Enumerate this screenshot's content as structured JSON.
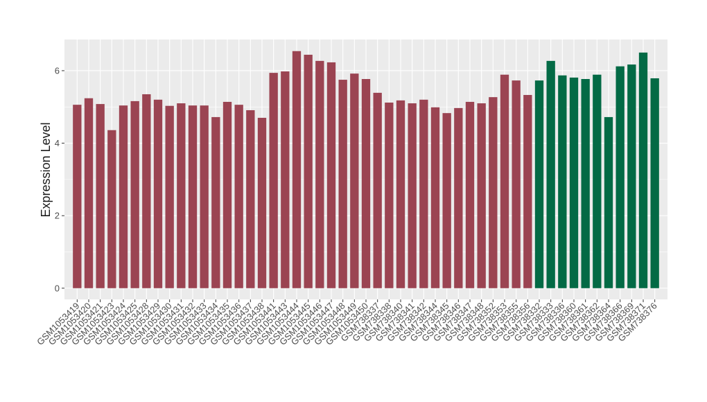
{
  "chart_data": {
    "type": "bar",
    "y_label": "Expression Level",
    "categories": [
      "GSM1053419",
      "GSM1053420",
      "GSM1053421",
      "GSM1053423",
      "GSM1053424",
      "GSM1053425",
      "GSM1053428",
      "GSM1053429",
      "GSM1053430",
      "GSM1053431",
      "GSM1053432",
      "GSM1053433",
      "GSM1053434",
      "GSM1053435",
      "GSM1053436",
      "GSM1053437",
      "GSM1053438",
      "GSM1053441",
      "GSM1053443",
      "GSM1053444",
      "GSM1053445",
      "GSM1053446",
      "GSM1053447",
      "GSM1053448",
      "GSM1053449",
      "GSM1053450",
      "GSM738337",
      "GSM738338",
      "GSM738340",
      "GSM738341",
      "GSM738342",
      "GSM738344",
      "GSM738345",
      "GSM738346",
      "GSM738347",
      "GSM738348",
      "GSM738352",
      "GSM738353",
      "GSM738355",
      "GSM738356",
      "GSM738332",
      "GSM738333",
      "GSM738336",
      "GSM738360",
      "GSM738361",
      "GSM738362",
      "GSM738364",
      "GSM738366",
      "GSM738369",
      "GSM738371",
      "GSM738376"
    ],
    "values": [
      5.06,
      5.24,
      5.08,
      4.36,
      5.04,
      5.16,
      5.35,
      5.2,
      5.03,
      5.1,
      5.04,
      5.04,
      4.72,
      5.14,
      5.06,
      4.91,
      4.7,
      5.94,
      5.98,
      6.54,
      6.44,
      6.27,
      6.23,
      5.75,
      5.92,
      5.77,
      5.39,
      5.12,
      5.18,
      5.1,
      5.2,
      4.99,
      4.83,
      4.97,
      5.14,
      5.1,
      5.27,
      5.89,
      5.73,
      5.33,
      5.73,
      6.27,
      5.87,
      5.81,
      5.77,
      5.89,
      4.72,
      6.12,
      6.17,
      6.5,
      5.79
    ],
    "colors": [
      "#9b4452",
      "#9b4452",
      "#9b4452",
      "#9b4452",
      "#9b4452",
      "#9b4452",
      "#9b4452",
      "#9b4452",
      "#9b4452",
      "#9b4452",
      "#9b4452",
      "#9b4452",
      "#9b4452",
      "#9b4452",
      "#9b4452",
      "#9b4452",
      "#9b4452",
      "#9b4452",
      "#9b4452",
      "#9b4452",
      "#9b4452",
      "#9b4452",
      "#9b4452",
      "#9b4452",
      "#9b4452",
      "#9b4452",
      "#9b4452",
      "#9b4452",
      "#9b4452",
      "#9b4452",
      "#9b4452",
      "#9b4452",
      "#9b4452",
      "#9b4452",
      "#9b4452",
      "#9b4452",
      "#9b4452",
      "#9b4452",
      "#9b4452",
      "#9b4452",
      "#036a45",
      "#036a45",
      "#036a45",
      "#036a45",
      "#036a45",
      "#036a45",
      "#036a45",
      "#036a45",
      "#036a45",
      "#036a45",
      "#036a45"
    ],
    "ylim": [
      -0.31,
      6.86
    ],
    "yticks": [
      0,
      2,
      4,
      6
    ],
    "grid": true
  }
}
